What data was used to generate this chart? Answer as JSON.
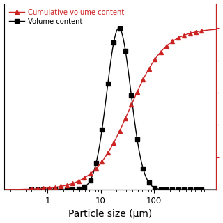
{
  "title": "",
  "xlabel": "Particle size (μm)",
  "vol_color": "#000000",
  "cum_color": "#cc2222",
  "background_color": "#ffffff",
  "vol_peak": 22,
  "vol_sigma": 0.52,
  "cum_midpoint": 35,
  "cum_slope": 1.3,
  "x_min": 0.15,
  "x_max": 1500,
  "y_left_max": 13.0,
  "y_right_max": 100
}
